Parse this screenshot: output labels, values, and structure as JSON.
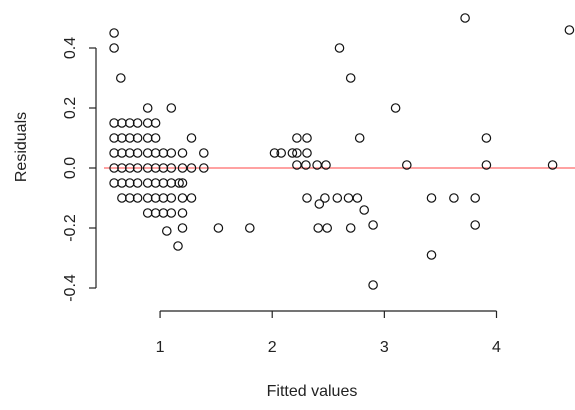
{
  "chart_data": {
    "type": "scatter",
    "title": "",
    "xlabel": "Fitted values",
    "ylabel": "Residuals",
    "xlim": [
      0.5,
      4.7
    ],
    "ylim": [
      -0.45,
      0.52
    ],
    "x_ticks": [
      1,
      2,
      3,
      4
    ],
    "y_ticks": [
      -0.4,
      -0.2,
      0.0,
      0.2,
      0.4
    ],
    "x_tick_labels": [
      "1",
      "2",
      "3",
      "4"
    ],
    "y_tick_labels": [
      "-0.4",
      "-0.2",
      "0.0",
      "0.2",
      "0.4"
    ],
    "grid": false,
    "legend": "none",
    "marker": "open-circle",
    "reference_line": {
      "y": 0.0,
      "color": "#ff6b6b"
    },
    "points": [
      [
        0.59,
        0.45
      ],
      [
        0.59,
        0.4
      ],
      [
        0.65,
        0.3
      ],
      [
        0.59,
        0.15
      ],
      [
        0.66,
        0.15
      ],
      [
        0.73,
        0.15
      ],
      [
        0.8,
        0.15
      ],
      [
        0.89,
        0.15
      ],
      [
        0.96,
        0.15
      ],
      [
        0.59,
        0.1
      ],
      [
        0.66,
        0.1
      ],
      [
        0.73,
        0.1
      ],
      [
        0.8,
        0.1
      ],
      [
        0.89,
        0.1
      ],
      [
        0.96,
        0.1
      ],
      [
        1.28,
        0.1
      ],
      [
        0.59,
        0.05
      ],
      [
        0.66,
        0.05
      ],
      [
        0.73,
        0.05
      ],
      [
        0.8,
        0.05
      ],
      [
        0.89,
        0.05
      ],
      [
        0.96,
        0.05
      ],
      [
        1.03,
        0.05
      ],
      [
        1.1,
        0.05
      ],
      [
        1.2,
        0.05
      ],
      [
        1.39,
        0.05
      ],
      [
        0.59,
        0.0
      ],
      [
        0.66,
        0.0
      ],
      [
        0.73,
        0.0
      ],
      [
        0.8,
        0.0
      ],
      [
        0.89,
        0.0
      ],
      [
        0.96,
        0.0
      ],
      [
        1.03,
        0.0
      ],
      [
        1.1,
        0.0
      ],
      [
        1.2,
        0.0
      ],
      [
        1.28,
        0.0
      ],
      [
        1.39,
        0.0
      ],
      [
        0.59,
        -0.05
      ],
      [
        0.66,
        -0.05
      ],
      [
        0.73,
        -0.05
      ],
      [
        0.8,
        -0.05
      ],
      [
        0.89,
        -0.05
      ],
      [
        0.96,
        -0.05
      ],
      [
        1.03,
        -0.05
      ],
      [
        1.1,
        -0.05
      ],
      [
        1.17,
        -0.05
      ],
      [
        1.2,
        -0.05
      ],
      [
        0.66,
        -0.1
      ],
      [
        0.73,
        -0.1
      ],
      [
        0.8,
        -0.1
      ],
      [
        0.89,
        -0.1
      ],
      [
        0.96,
        -0.1
      ],
      [
        1.03,
        -0.1
      ],
      [
        1.1,
        -0.1
      ],
      [
        1.2,
        -0.1
      ],
      [
        1.28,
        -0.1
      ],
      [
        0.89,
        -0.15
      ],
      [
        0.96,
        -0.15
      ],
      [
        1.03,
        -0.15
      ],
      [
        1.1,
        -0.15
      ],
      [
        1.2,
        -0.15
      ],
      [
        0.89,
        0.2
      ],
      [
        1.1,
        0.2
      ],
      [
        1.06,
        -0.21
      ],
      [
        1.2,
        -0.2
      ],
      [
        1.16,
        -0.26
      ],
      [
        1.52,
        -0.2
      ],
      [
        1.8,
        -0.2
      ],
      [
        2.02,
        0.05
      ],
      [
        2.08,
        0.05
      ],
      [
        2.18,
        0.05
      ],
      [
        2.22,
        0.1
      ],
      [
        2.31,
        0.1
      ],
      [
        2.22,
        0.05
      ],
      [
        2.31,
        0.05
      ],
      [
        2.22,
        0.01
      ],
      [
        2.3,
        0.01
      ],
      [
        2.4,
        0.01
      ],
      [
        2.48,
        0.01
      ],
      [
        2.31,
        -0.1
      ],
      [
        2.42,
        -0.12
      ],
      [
        2.47,
        -0.1
      ],
      [
        2.58,
        -0.1
      ],
      [
        2.68,
        -0.1
      ],
      [
        2.76,
        -0.1
      ],
      [
        2.82,
        -0.14
      ],
      [
        2.41,
        -0.2
      ],
      [
        2.49,
        -0.2
      ],
      [
        2.7,
        -0.2
      ],
      [
        2.9,
        -0.19
      ],
      [
        2.6,
        0.4
      ],
      [
        2.7,
        0.3
      ],
      [
        2.78,
        0.1
      ],
      [
        2.9,
        -0.39
      ],
      [
        3.1,
        0.2
      ],
      [
        3.2,
        0.01
      ],
      [
        3.42,
        -0.1
      ],
      [
        3.42,
        -0.29
      ],
      [
        3.62,
        -0.1
      ],
      [
        3.72,
        0.5
      ],
      [
        3.81,
        -0.1
      ],
      [
        3.81,
        -0.19
      ],
      [
        3.91,
        0.1
      ],
      [
        3.91,
        0.01
      ],
      [
        4.5,
        0.01
      ],
      [
        4.65,
        0.46
      ]
    ]
  }
}
